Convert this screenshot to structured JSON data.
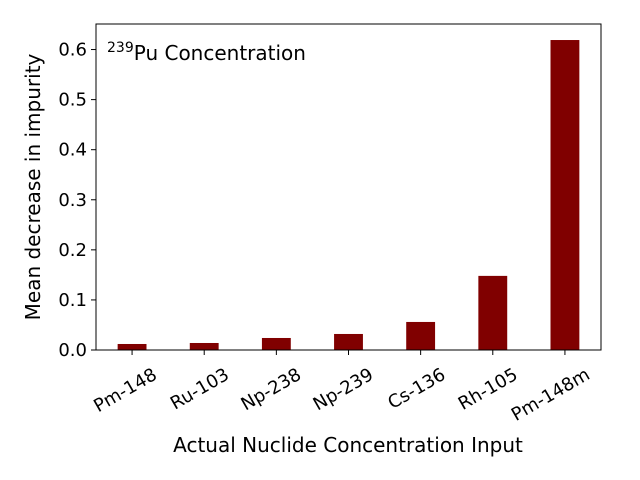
{
  "chart_data": {
    "type": "bar",
    "categories": [
      "Pm-148",
      "Ru-103",
      "Np-238",
      "Np-239",
      "Cs-136",
      "Rh-105",
      "Pm-148m"
    ],
    "values": [
      0.012,
      0.014,
      0.024,
      0.032,
      0.056,
      0.148,
      0.619
    ],
    "xlabel": "Actual Nuclide Concentration Input",
    "ylabel": "Mean decrease in impurity",
    "ylim": [
      0,
      0.651
    ],
    "yticks": [
      0.0,
      0.1,
      0.2,
      0.3,
      0.4,
      0.5,
      0.6
    ],
    "ytick_labels": [
      "0.0",
      "0.1",
      "0.2",
      "0.3",
      "0.4",
      "0.5",
      "0.6"
    ],
    "annotation": {
      "superscript": "239",
      "text": "Pu Concentration",
      "placement": "top-left"
    },
    "bar_color": "#800000",
    "grid": false,
    "legend": "none"
  }
}
